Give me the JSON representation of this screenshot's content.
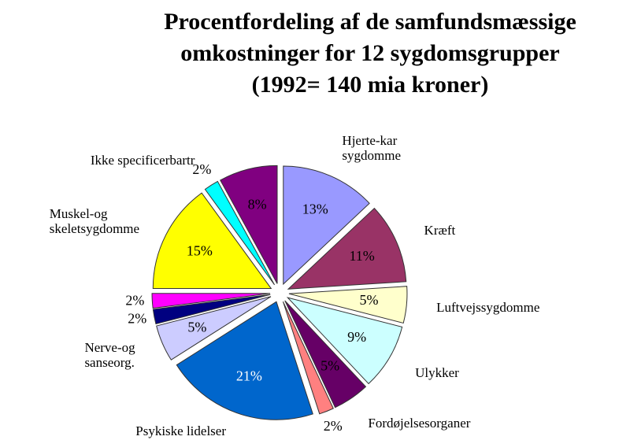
{
  "chart_data": {
    "type": "pie",
    "title": "Procentfordeling af de samfundsmæssige\nomkostninger for 12 sygdomsgrupper\n(1992= 140 mia kroner)",
    "categories": [
      "Hjerte-kar\nsygdomme",
      "Kræft",
      "Luftvejssygdomme",
      "Ulykker",
      "Fordøjelsesorganer",
      null,
      "Psykiske lidelser",
      "Nerve-og\nsanseorg.",
      null,
      null,
      "Muskel-og\nskeletsygdomme",
      "Ikke specificerbartr",
      null
    ],
    "values": [
      13,
      11,
      5,
      9,
      5,
      2,
      21,
      5,
      2,
      2,
      15,
      2,
      8
    ],
    "value_labels": [
      "13%",
      "11%",
      "5%",
      "9%",
      "5%",
      "2%",
      "21%",
      "5%",
      "2%",
      "2%",
      "15%",
      "2%",
      "8%"
    ],
    "colors": [
      "#9999ff",
      "#993366",
      "#ffffcc",
      "#ccffff",
      "#660066",
      "#ff8080",
      "#0066cc",
      "#ccccff",
      "#000080",
      "#ff00ff",
      "#ffff00",
      "#00ffff",
      "#800080"
    ]
  }
}
